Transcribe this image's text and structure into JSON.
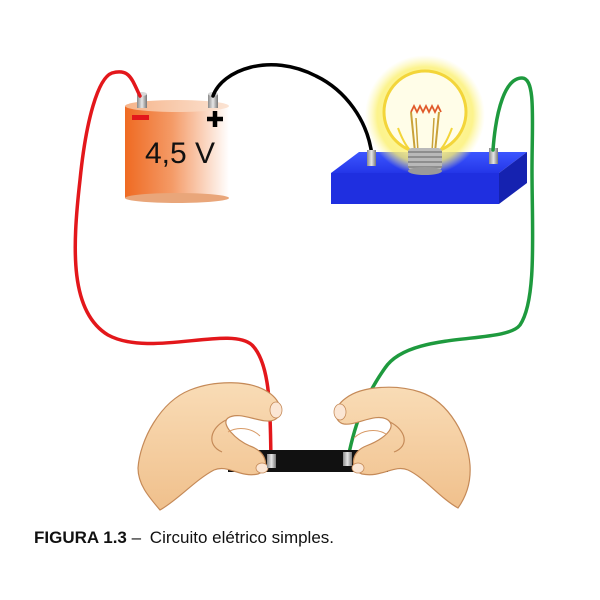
{
  "figure": {
    "battery": {
      "voltage_label": "4,5 V",
      "negative_symbol": "−",
      "positive_symbol": "+"
    },
    "caption": {
      "label": "FIGURA 1.3",
      "separator": " – ",
      "text": "Circuito elétrico simples."
    },
    "colors": {
      "negative_wire": "#e3171b",
      "positive_wire": "#000000",
      "return_wire": "#1e9a3e",
      "bulb_base": "#1f2fe0",
      "battery_body": "#f07a35",
      "test_strip": "#111111"
    }
  }
}
